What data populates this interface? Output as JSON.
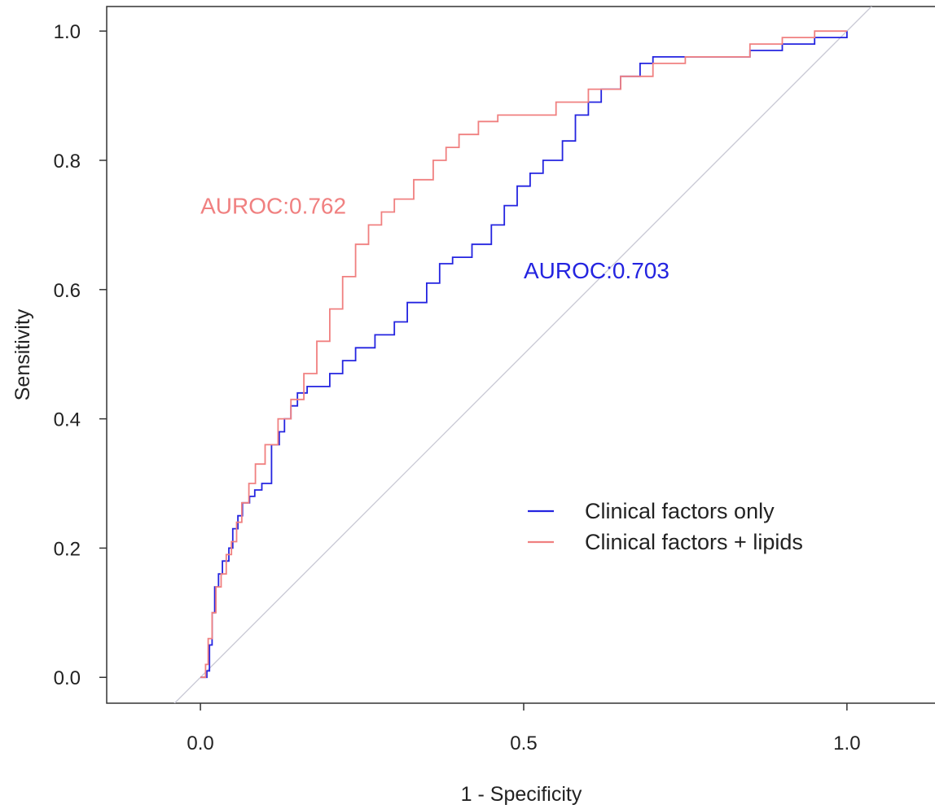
{
  "chart_data": {
    "type": "line",
    "xlabel": "1 - Specificity",
    "ylabel": "Sensitivity",
    "xlim": [
      -0.145,
      1.14
    ],
    "ylim": [
      -0.04,
      1.038
    ],
    "x_ticks": [
      "0.0",
      "0.5",
      "1.0"
    ],
    "y_ticks": [
      "0.0",
      "0.2",
      "0.4",
      "0.6",
      "0.8",
      "1.0"
    ],
    "grid": false,
    "legend_position": "bottom-right",
    "reference_line": {
      "from": [
        0,
        0
      ],
      "to": [
        1,
        1
      ],
      "color": "#c8c8d4"
    },
    "series": [
      {
        "name": "Clinical factors only",
        "color": "#2424e0",
        "x": [
          0,
          0.01,
          0.014,
          0.018,
          0.022,
          0.028,
          0.034,
          0.044,
          0.05,
          0.058,
          0.065,
          0.076,
          0.084,
          0.095,
          0.11,
          0.122,
          0.13,
          0.14,
          0.15,
          0.165,
          0.2,
          0.22,
          0.24,
          0.27,
          0.3,
          0.32,
          0.35,
          0.37,
          0.39,
          0.42,
          0.45,
          0.47,
          0.49,
          0.51,
          0.53,
          0.56,
          0.58,
          0.6,
          0.62,
          0.65,
          0.68,
          0.7,
          0.75,
          0.8,
          0.85,
          0.9,
          0.95,
          1.0
        ],
        "y": [
          0,
          0.01,
          0.05,
          0.1,
          0.14,
          0.16,
          0.18,
          0.2,
          0.23,
          0.25,
          0.27,
          0.28,
          0.29,
          0.3,
          0.36,
          0.38,
          0.4,
          0.42,
          0.44,
          0.45,
          0.47,
          0.49,
          0.51,
          0.53,
          0.55,
          0.58,
          0.61,
          0.64,
          0.65,
          0.67,
          0.7,
          0.73,
          0.76,
          0.78,
          0.8,
          0.83,
          0.87,
          0.89,
          0.91,
          0.93,
          0.95,
          0.96,
          0.96,
          0.96,
          0.97,
          0.98,
          0.99,
          1.0
        ]
      },
      {
        "name": "Clinical factors + lipids",
        "color": "#f08080",
        "x": [
          0,
          0.008,
          0.012,
          0.018,
          0.024,
          0.032,
          0.04,
          0.048,
          0.056,
          0.064,
          0.075,
          0.085,
          0.1,
          0.12,
          0.14,
          0.16,
          0.18,
          0.2,
          0.22,
          0.24,
          0.26,
          0.28,
          0.3,
          0.33,
          0.36,
          0.38,
          0.4,
          0.43,
          0.46,
          0.5,
          0.55,
          0.6,
          0.65,
          0.7,
          0.75,
          0.8,
          0.85,
          0.9,
          0.95,
          1.0
        ],
        "y": [
          0,
          0.02,
          0.06,
          0.1,
          0.14,
          0.16,
          0.19,
          0.21,
          0.24,
          0.27,
          0.3,
          0.33,
          0.36,
          0.4,
          0.43,
          0.47,
          0.52,
          0.57,
          0.62,
          0.67,
          0.7,
          0.72,
          0.74,
          0.77,
          0.8,
          0.82,
          0.84,
          0.86,
          0.87,
          0.87,
          0.89,
          0.91,
          0.93,
          0.95,
          0.96,
          0.96,
          0.98,
          0.99,
          1.0,
          1.0
        ]
      }
    ],
    "annotations": [
      {
        "text": "AUROC:0.762",
        "x": 0.0,
        "y": 0.73,
        "color": "#f08080"
      },
      {
        "text": "AUROC:0.703",
        "x": 0.5,
        "y": 0.63,
        "color": "#2424e0"
      }
    ]
  }
}
